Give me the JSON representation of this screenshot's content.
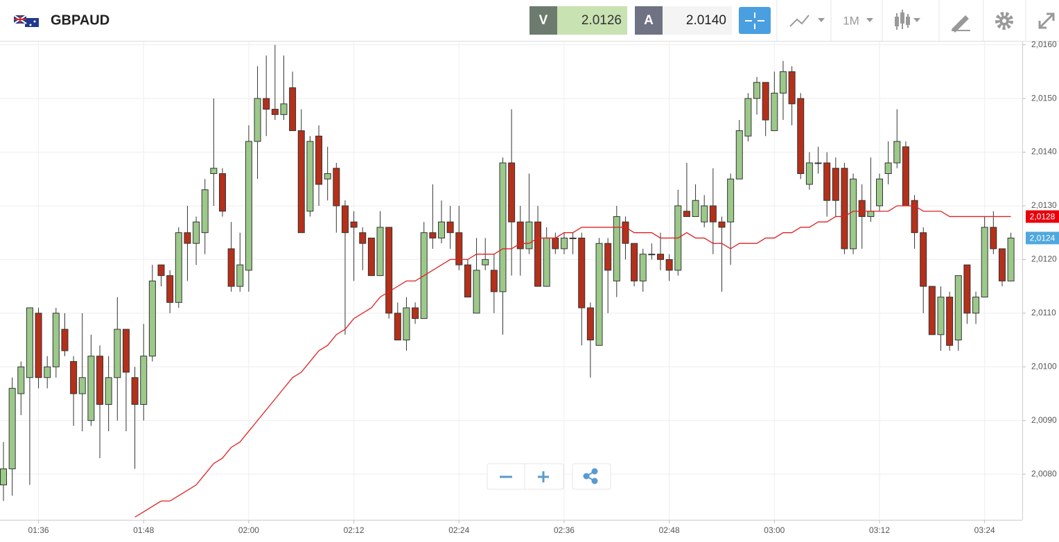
{
  "toolbar": {
    "symbol": "GBPAUD",
    "sell_label": "V",
    "sell_price": "2.0126",
    "buy_label": "A",
    "buy_price": "2.0140",
    "timeframe": "1M"
  },
  "chart_data": {
    "type": "candlestick",
    "x": [
      "01:32",
      "01:33",
      "01:34",
      "01:35",
      "01:36",
      "01:37",
      "01:38",
      "01:39",
      "01:40",
      "01:41",
      "01:42",
      "01:43",
      "01:44",
      "01:45",
      "01:46",
      "01:47",
      "01:48",
      "01:49",
      "01:50",
      "01:51",
      "01:52",
      "01:53",
      "01:54",
      "01:55",
      "01:56",
      "01:57",
      "01:58",
      "01:59",
      "02:00",
      "02:01",
      "02:02",
      "02:03",
      "02:04",
      "02:05",
      "02:06",
      "02:07",
      "02:08",
      "02:09",
      "02:10",
      "02:11",
      "02:12",
      "02:13",
      "02:14",
      "02:15",
      "02:16",
      "02:17",
      "02:18",
      "02:19",
      "02:20",
      "02:21",
      "02:22",
      "02:23",
      "02:24",
      "02:25",
      "02:26",
      "02:27",
      "02:28",
      "02:29",
      "02:30",
      "02:31",
      "02:32",
      "02:33",
      "02:34",
      "02:35",
      "02:36",
      "02:37",
      "02:38",
      "02:39",
      "02:40",
      "02:41",
      "02:42",
      "02:43",
      "02:44",
      "02:45",
      "02:46",
      "02:47",
      "02:48",
      "02:49",
      "02:50",
      "02:51",
      "02:52",
      "02:53",
      "02:54",
      "02:55",
      "02:56",
      "02:57",
      "02:58",
      "02:59",
      "03:00",
      "03:01",
      "03:02",
      "03:03",
      "03:04",
      "03:05",
      "03:06",
      "03:07",
      "03:08",
      "03:09",
      "03:10",
      "03:11",
      "03:12",
      "03:13",
      "03:14",
      "03:15",
      "03:16",
      "03:17",
      "03:18",
      "03:19",
      "03:20",
      "03:21",
      "03:22",
      "03:23",
      "03:24",
      "03:25",
      "03:26",
      "03:27"
    ],
    "open": [
      2.0078,
      2.0081,
      2.0095,
      2.0098,
      2.011,
      2.0098,
      2.01,
      2.0107,
      2.0101,
      2.0095,
      2.009,
      2.0102,
      2.0093,
      2.0098,
      2.0107,
      2.0098,
      2.0093,
      2.0102,
      2.0119,
      2.0117,
      2.0112,
      2.0125,
      2.0123,
      2.0125,
      2.0136,
      2.0136,
      2.0122,
      2.0115,
      2.0118,
      2.0142,
      2.015,
      2.0148,
      2.0147,
      2.0152,
      2.0144,
      2.0129,
      2.0143,
      2.0135,
      2.0137,
      2.013,
      2.0127,
      2.0125,
      2.0124,
      2.0117,
      2.0126,
      2.011,
      2.0105,
      2.0111,
      2.0109,
      2.0125,
      2.0124,
      2.0127,
      2.0125,
      2.0119,
      2.011,
      2.0119,
      2.0118,
      2.0114,
      2.0138,
      2.0127,
      2.0122,
      2.0127,
      2.0115,
      2.0124,
      2.0122,
      2.0124,
      2.0124,
      2.0111,
      2.0104,
      2.0123,
      2.0116,
      2.0127,
      2.0123,
      2.0116,
      2.0121,
      2.0121,
      2.012,
      2.0118,
      2.0129,
      2.0128,
      2.0127,
      2.013,
      2.0127,
      2.0127,
      2.0135,
      2.0143,
      2.015,
      2.0153,
      2.0144,
      2.0151,
      2.0155,
      2.015,
      2.0134,
      2.0138,
      2.0138,
      2.0137,
      2.0137,
      2.0122,
      2.0131,
      2.0128,
      2.013,
      2.0136,
      2.0138,
      2.0141,
      2.0131,
      2.0125,
      2.0115,
      2.0106,
      2.0113,
      2.0105,
      2.0119,
      2.011,
      2.0113,
      2.0126,
      2.0122,
      2.0116
    ],
    "high": [
      2.0086,
      2.0098,
      2.0101,
      2.0111,
      2.0111,
      2.0102,
      2.0111,
      2.011,
      2.0102,
      2.011,
      2.0106,
      2.0104,
      2.0102,
      2.0113,
      2.0107,
      2.01,
      2.0108,
      2.0119,
      2.0119,
      2.0118,
      2.0126,
      2.013,
      2.0128,
      2.0135,
      2.015,
      2.0137,
      2.0127,
      2.0125,
      2.0145,
      2.0156,
      2.0158,
      2.016,
      2.0158,
      2.0155,
      2.0148,
      2.0143,
      2.0145,
      2.0141,
      2.0138,
      2.0131,
      2.0129,
      2.0126,
      2.0124,
      2.0129,
      2.0126,
      2.0112,
      2.0113,
      2.0112,
      2.0127,
      2.0134,
      2.0131,
      2.013,
      2.013,
      2.012,
      2.0124,
      2.0124,
      2.0121,
      2.0139,
      2.0148,
      2.013,
      2.0136,
      2.013,
      2.0126,
      2.0125,
      2.0125,
      2.0125,
      2.0125,
      2.0112,
      2.0124,
      2.0124,
      2.013,
      2.0128,
      2.0123,
      2.0122,
      2.0123,
      2.0125,
      2.0121,
      2.0133,
      2.0138,
      2.0134,
      2.0132,
      2.0137,
      2.0128,
      2.0136,
      2.0146,
      2.0151,
      2.0154,
      2.0153,
      2.0155,
      2.0157,
      2.0156,
      2.0151,
      2.014,
      2.0141,
      2.014,
      2.0139,
      2.0138,
      2.0136,
      2.0134,
      2.0139,
      2.0136,
      2.0142,
      2.0148,
      2.0142,
      2.0132,
      2.0126,
      2.0115,
      2.0115,
      2.0114,
      2.0117,
      2.0119,
      2.0114,
      2.0128,
      2.0129,
      2.0122,
      2.0125
    ],
    "low": [
      2.0075,
      2.0076,
      2.0091,
      2.0078,
      2.0096,
      2.0096,
      2.0098,
      2.0102,
      2.0089,
      2.0088,
      2.0089,
      2.0083,
      2.0088,
      2.009,
      2.0088,
      2.0081,
      2.009,
      2.0101,
      2.0115,
      2.011,
      2.0111,
      2.0116,
      2.0119,
      2.0121,
      2.013,
      2.0128,
      2.0114,
      2.0114,
      2.0114,
      2.0135,
      2.0143,
      2.0146,
      2.0146,
      2.0144,
      2.0125,
      2.0128,
      2.013,
      2.0131,
      2.0125,
      2.0106,
      2.0116,
      2.0118,
      2.0117,
      2.0117,
      2.0109,
      2.0105,
      2.0103,
      2.0108,
      2.0109,
      2.0122,
      2.0123,
      2.0122,
      2.0118,
      2.0113,
      2.011,
      2.0118,
      2.011,
      2.0106,
      2.0117,
      2.0117,
      2.0121,
      2.0115,
      2.0115,
      2.0121,
      2.0121,
      2.0121,
      2.0104,
      2.0098,
      2.0104,
      2.011,
      2.0113,
      2.012,
      2.0115,
      2.0114,
      2.012,
      2.0118,
      2.0116,
      2.0117,
      2.0128,
      2.0128,
      2.0126,
      2.0121,
      2.0114,
      2.0119,
      2.0135,
      2.0142,
      2.0147,
      2.0143,
      2.0144,
      2.0146,
      2.0145,
      2.0135,
      2.0133,
      2.0136,
      2.0128,
      2.0128,
      2.0121,
      2.0121,
      2.0122,
      2.0127,
      2.0129,
      2.0134,
      2.0137,
      2.013,
      2.0122,
      2.011,
      2.0106,
      2.0103,
      2.0103,
      2.0103,
      2.0108,
      2.0108,
      2.0113,
      2.0121,
      2.0115,
      2.0116
    ],
    "close": [
      2.0081,
      2.0096,
      2.01,
      2.0111,
      2.0098,
      2.01,
      2.011,
      2.0103,
      2.0095,
      2.0098,
      2.0102,
      2.0093,
      2.0098,
      2.0107,
      2.0099,
      2.0093,
      2.0102,
      2.0116,
      2.0117,
      2.0112,
      2.0125,
      2.0123,
      2.0127,
      2.0133,
      2.0137,
      2.0129,
      2.0115,
      2.0119,
      2.0142,
      2.015,
      2.0148,
      2.0147,
      2.0149,
      2.0144,
      2.0125,
      2.0142,
      2.0134,
      2.0136,
      2.013,
      2.0125,
      2.0126,
      2.0123,
      2.0117,
      2.0126,
      2.011,
      2.0105,
      2.0111,
      2.0109,
      2.0125,
      2.0124,
      2.0127,
      2.0125,
      2.0119,
      2.0113,
      2.0118,
      2.012,
      2.0114,
      2.0138,
      2.0127,
      2.0122,
      2.0127,
      2.0115,
      2.0124,
      2.0122,
      2.0124,
      2.0124,
      2.0111,
      2.0105,
      2.0123,
      2.0118,
      2.0128,
      2.0123,
      2.0116,
      2.0121,
      2.0121,
      2.012,
      2.0118,
      2.013,
      2.0128,
      2.0131,
      2.013,
      2.0127,
      2.0126,
      2.0135,
      2.0144,
      2.015,
      2.0153,
      2.0146,
      2.0151,
      2.0155,
      2.0149,
      2.0136,
      2.0138,
      2.0138,
      2.0131,
      2.0131,
      2.0122,
      2.0135,
      2.0128,
      2.0129,
      2.0135,
      2.0138,
      2.0142,
      2.013,
      2.0125,
      2.0115,
      2.0106,
      2.0113,
      2.0104,
      2.0117,
      2.011,
      2.0113,
      2.0126,
      2.0122,
      2.0116,
      2.0124
    ],
    "ma": [
      null,
      null,
      null,
      null,
      null,
      null,
      null,
      null,
      null,
      null,
      null,
      null,
      null,
      null,
      null,
      2.0072,
      2.0073,
      2.0074,
      2.0075,
      2.0075,
      2.0076,
      2.0077,
      2.0078,
      2.008,
      2.0082,
      2.0083,
      2.0085,
      2.0086,
      2.0088,
      2.009,
      2.0092,
      2.0094,
      2.0096,
      2.0098,
      2.0099,
      2.0101,
      2.0103,
      2.0104,
      2.0106,
      2.0107,
      2.0109,
      2.011,
      2.0111,
      2.0113,
      2.0114,
      2.0115,
      2.0116,
      2.0116,
      2.0117,
      2.0118,
      2.0119,
      2.012,
      2.012,
      2.012,
      2.0121,
      2.0121,
      2.0121,
      2.0122,
      2.0122,
      2.0123,
      2.0123,
      2.0124,
      2.0124,
      2.0124,
      2.0125,
      2.0125,
      2.0126,
      2.0126,
      2.0126,
      2.0126,
      2.0126,
      2.0126,
      2.0125,
      2.0125,
      2.0125,
      2.0124,
      2.0124,
      2.0124,
      2.0125,
      2.0124,
      2.0124,
      2.0123,
      2.0123,
      2.0122,
      2.0123,
      2.0123,
      2.0123,
      2.0124,
      2.0124,
      2.0125,
      2.0125,
      2.0126,
      2.0126,
      2.0127,
      2.0127,
      2.0128,
      2.0128,
      2.0129,
      2.0129,
      2.0129,
      2.0129,
      2.0129,
      2.013,
      2.013,
      2.013,
      2.0129,
      2.0129,
      2.0129,
      2.0128,
      2.0128,
      2.0128,
      2.0128,
      2.0128,
      2.0128,
      2.0128,
      2.0128
    ],
    "up_color": "#9cc98a",
    "down_color": "#b5301a",
    "ma_color": "#e02020",
    "ylim": [
      2.00715,
      2.01606
    ],
    "yticks": [
      {
        "value": 2.008,
        "label": "2,0080"
      },
      {
        "value": 2.009,
        "label": "2,0090"
      },
      {
        "value": 2.01,
        "label": "2,0100"
      },
      {
        "value": 2.011,
        "label": "2,0110"
      },
      {
        "value": 2.012,
        "label": "2,0120"
      },
      {
        "value": 2.013,
        "label": "2,0130"
      },
      {
        "value": 2.014,
        "label": "2,0140"
      },
      {
        "value": 2.015,
        "label": "2,0150"
      },
      {
        "value": 2.016,
        "label": "2,0160"
      }
    ],
    "xticks": [
      "01:36",
      "01:48",
      "02:00",
      "02:12",
      "02:24",
      "02:36",
      "02:48",
      "03:00",
      "03:12",
      "03:24"
    ],
    "price_tags": [
      {
        "value": 2.0128,
        "label": "2,0128",
        "color": "#e8000b"
      },
      {
        "value": 2.0124,
        "label": "2,0124",
        "color": "#4ea8dd"
      }
    ],
    "grid": true
  }
}
